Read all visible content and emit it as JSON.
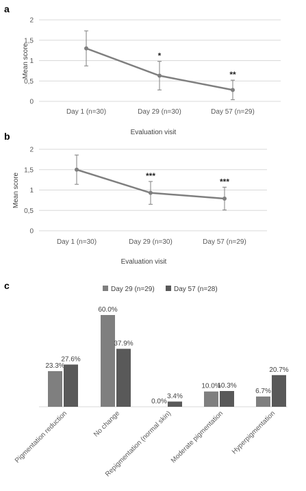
{
  "chart_data": [
    {
      "panel": "a",
      "type": "line",
      "categories": [
        "Day 1 (n=30)",
        "Day 29  (n=30)",
        "Day 57  (n=29)"
      ],
      "values": [
        1.3,
        0.63,
        0.28
      ],
      "error_upper": [
        1.73,
        0.98,
        0.52
      ],
      "error_lower": [
        0.87,
        0.28,
        0.04
      ],
      "significance": [
        "",
        "*",
        "**"
      ],
      "ylim": [
        0,
        2
      ],
      "yticks": [
        "0",
        "0,5",
        "1",
        "1,5",
        "2"
      ],
      "xlabel": "Evaluation visit",
      "ylabel": "Mean score",
      "grid": true
    },
    {
      "panel": "b",
      "type": "line",
      "categories": [
        "Day 1 (n=30)",
        "Day 29  (n=30)",
        "Day 57  (n=29)"
      ],
      "values": [
        1.5,
        0.93,
        0.79
      ],
      "error_upper": [
        1.86,
        1.21,
        1.07
      ],
      "error_lower": [
        1.14,
        0.65,
        0.51
      ],
      "significance": [
        "",
        "***",
        "***"
      ],
      "ylim": [
        0,
        2
      ],
      "yticks": [
        "0",
        "0,5",
        "1",
        "1,5",
        "2"
      ],
      "xlabel": "Evaluation visit",
      "ylabel": "Mean score",
      "grid": true
    },
    {
      "panel": "c",
      "type": "bar",
      "categories": [
        "Pigmentation reduction",
        "No change",
        "Repigmentation (normal skin)",
        "Moderate pigmentation",
        "Hyperpigmentation"
      ],
      "series": [
        {
          "name": "Day 29 (n=29)",
          "values": [
            23.3,
            60.0,
            0.0,
            10.0,
            6.7
          ],
          "labels": [
            "23.3%",
            "60.0%",
            "0.0%",
            "10.0%",
            "6.7%"
          ]
        },
        {
          "name": "Day 57 (n=28)",
          "values": [
            27.6,
            37.9,
            3.4,
            10.3,
            20.7
          ],
          "labels": [
            "27.6%",
            "37.9%",
            "3.4%",
            "10.3%",
            "20.7%"
          ]
        }
      ],
      "legend_position": "top",
      "grid": false
    }
  ],
  "colors": {
    "line": "#7f7f7f",
    "grid": "#d9d9d9",
    "bar_day29": "#7f7f7f",
    "bar_day57": "#595959"
  }
}
